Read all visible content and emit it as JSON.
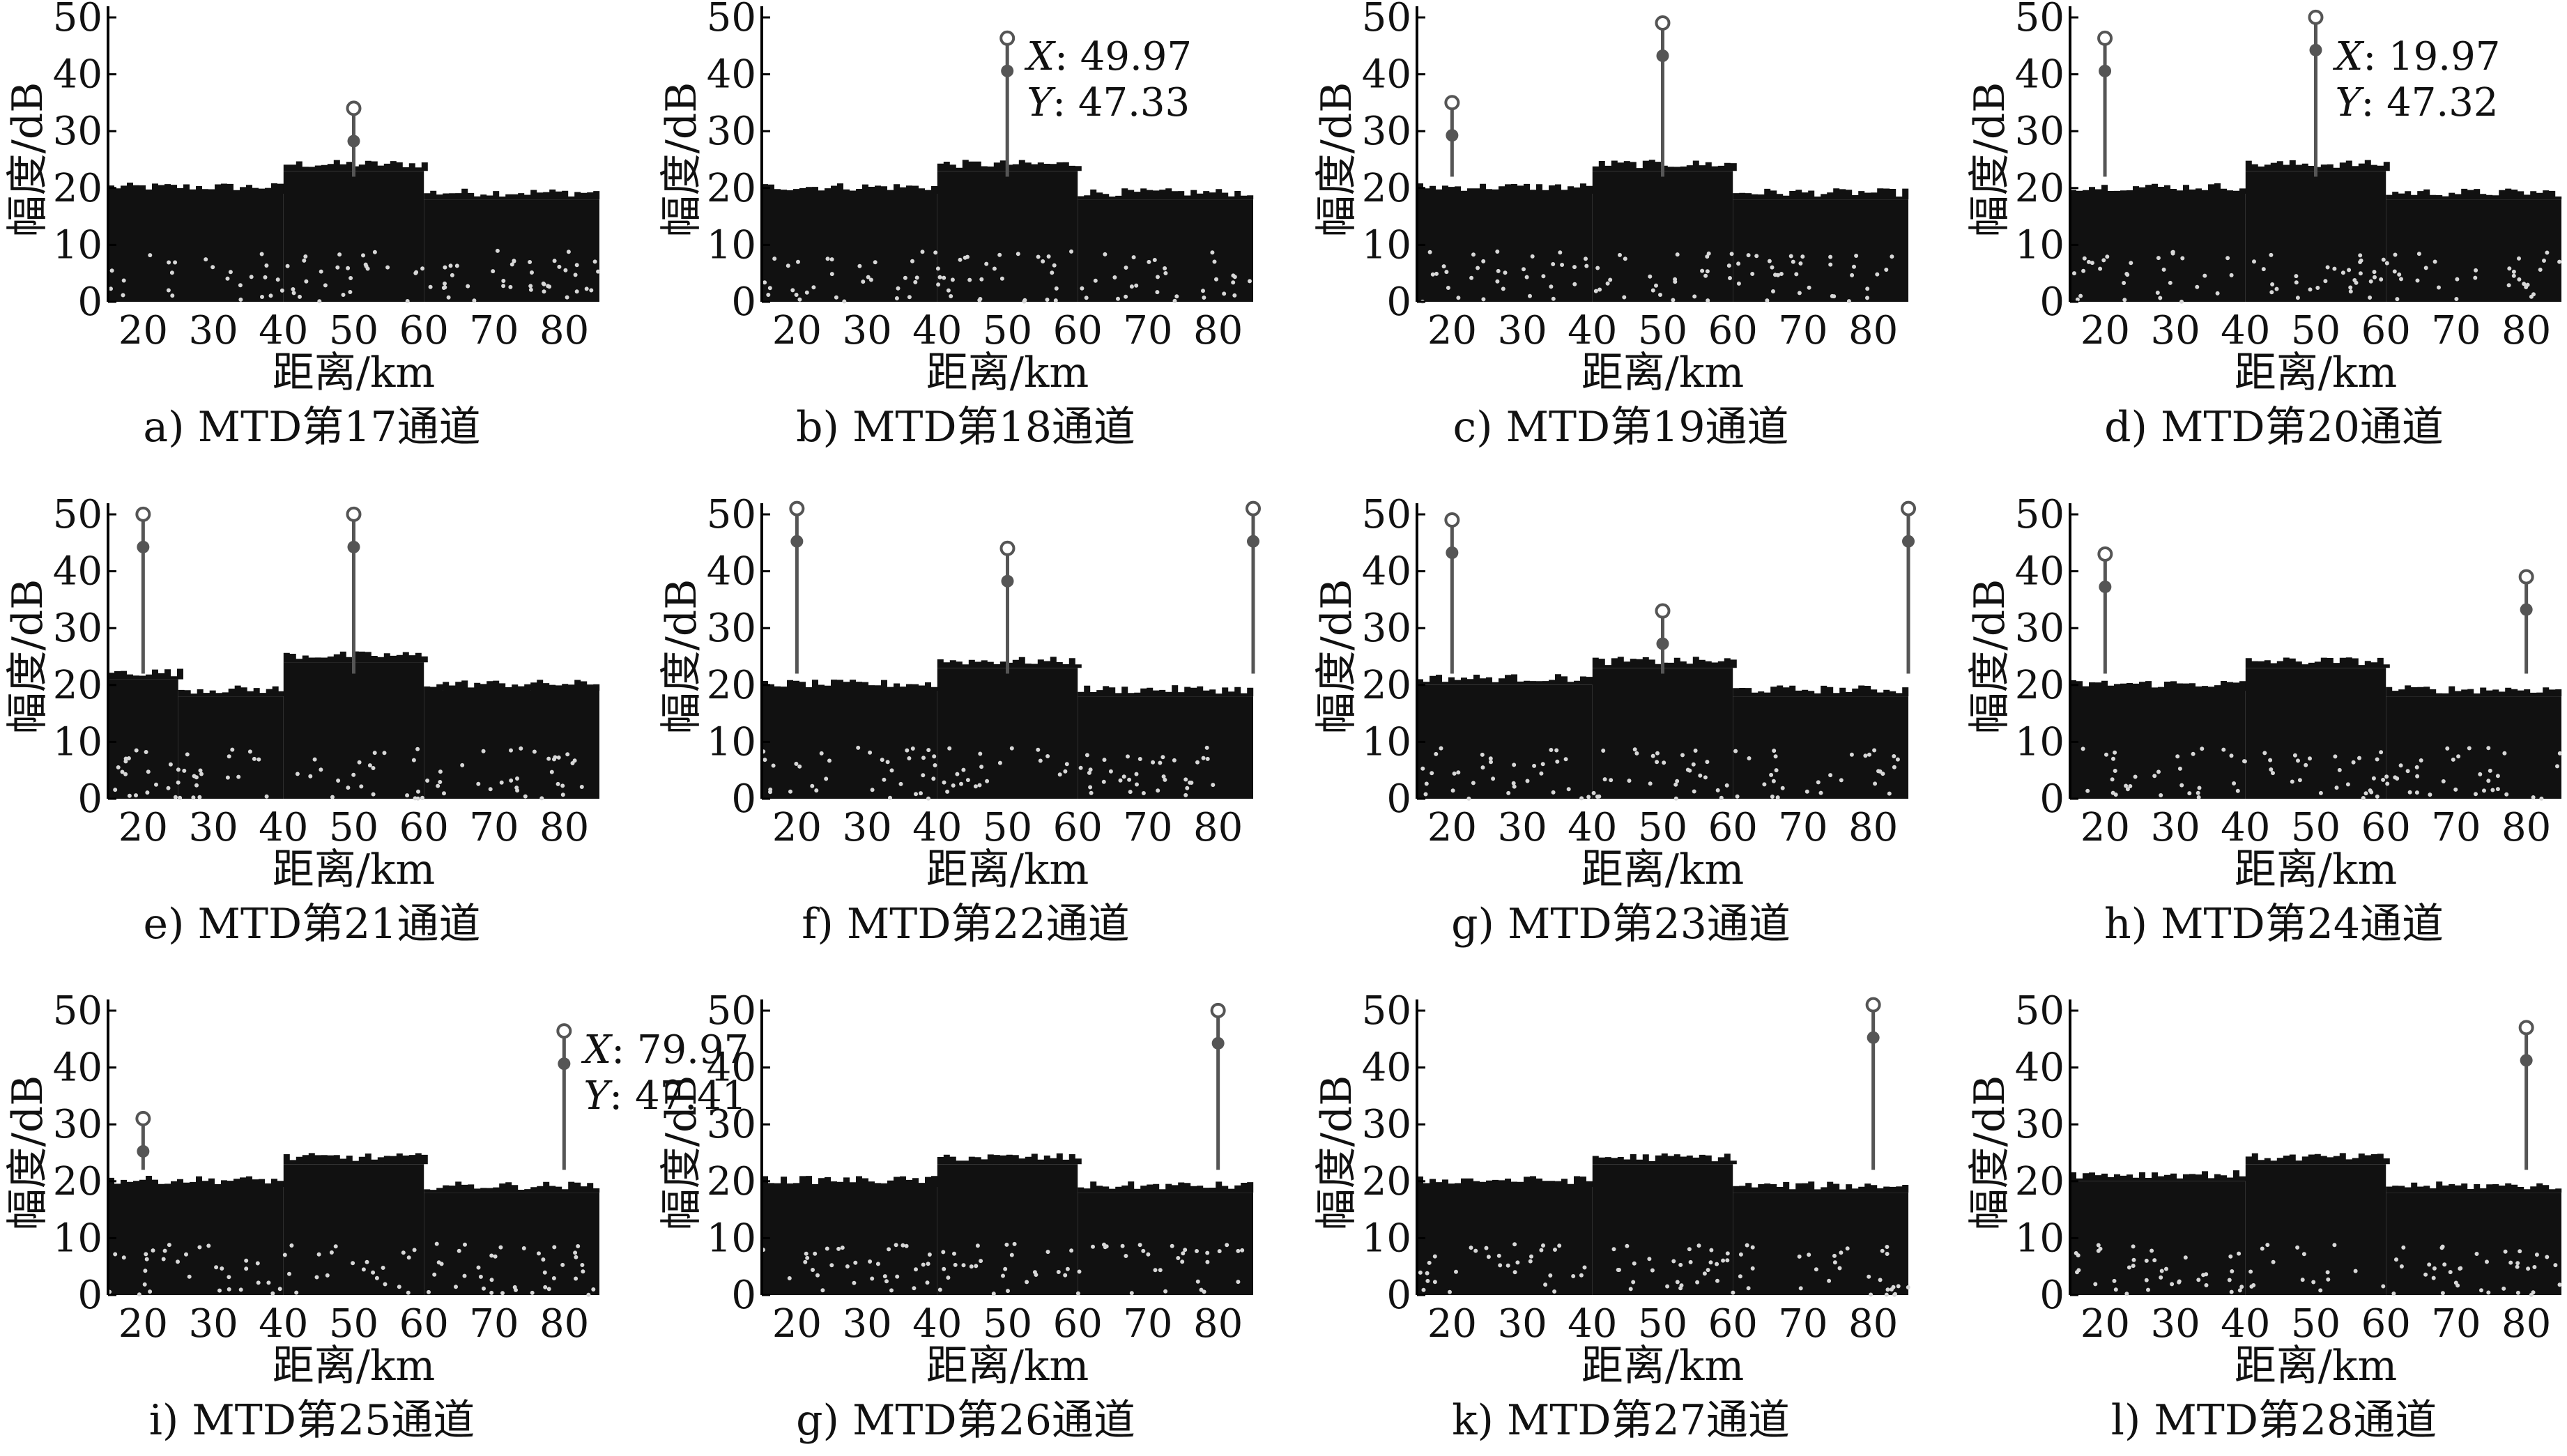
{
  "figure": {
    "colors": {
      "background": "#ffffff",
      "noise": "#111111",
      "target": "#555555",
      "text": "#111111"
    },
    "panels": [
      {
        "caption": "a) MTD第17通道",
        "chart_data": {
          "type": "scatter",
          "xlabel": "距离/km",
          "ylabel": "幅度/dB",
          "xlim": [
            15,
            85
          ],
          "ylim": [
            0,
            50
          ],
          "xticks": [
            20,
            30,
            40,
            50,
            60,
            70,
            80
          ],
          "yticks": [
            0,
            10,
            20,
            30,
            40,
            50
          ],
          "floor_segments": [
            {
              "x": [
                15,
                40
              ],
              "y": 19
            },
            {
              "x": [
                40,
                60
              ],
              "y": 23
            },
            {
              "x": [
                60,
                85
              ],
              "y": 18
            }
          ],
          "targets": [
            {
              "x": 50,
              "y": 35
            }
          ],
          "datatip": null
        }
      },
      {
        "caption": "b) MTD第18通道",
        "chart_data": {
          "type": "scatter",
          "xlabel": "距离/km",
          "ylabel": "幅度/dB",
          "xlim": [
            15,
            85
          ],
          "ylim": [
            0,
            50
          ],
          "xticks": [
            20,
            30,
            40,
            50,
            60,
            70,
            80
          ],
          "yticks": [
            0,
            10,
            20,
            30,
            40,
            50
          ],
          "floor_segments": [
            {
              "x": [
                15,
                40
              ],
              "y": 19
            },
            {
              "x": [
                40,
                60
              ],
              "y": 23
            },
            {
              "x": [
                60,
                85
              ],
              "y": 18
            }
          ],
          "targets": [
            {
              "x": 49.97,
              "y": 47.33
            }
          ],
          "datatip": {
            "x_text": "49.97",
            "y_text": "47.33"
          }
        }
      },
      {
        "caption": "c) MTD第19通道",
        "chart_data": {
          "type": "scatter",
          "xlabel": "距离/km",
          "ylabel": "幅度/dB",
          "xlim": [
            15,
            85
          ],
          "ylim": [
            0,
            50
          ],
          "xticks": [
            20,
            30,
            40,
            50,
            60,
            70,
            80
          ],
          "yticks": [
            0,
            10,
            20,
            30,
            40,
            50
          ],
          "floor_segments": [
            {
              "x": [
                15,
                40
              ],
              "y": 19
            },
            {
              "x": [
                40,
                60
              ],
              "y": 23
            },
            {
              "x": [
                60,
                85
              ],
              "y": 18
            }
          ],
          "targets": [
            {
              "x": 20,
              "y": 36
            },
            {
              "x": 50,
              "y": 50
            }
          ],
          "datatip": null
        }
      },
      {
        "caption": "d) MTD第20通道",
        "chart_data": {
          "type": "scatter",
          "xlabel": "距离/km",
          "ylabel": "幅度/dB",
          "xlim": [
            15,
            85
          ],
          "ylim": [
            0,
            50
          ],
          "xticks": [
            20,
            30,
            40,
            50,
            60,
            70,
            80
          ],
          "yticks": [
            0,
            10,
            20,
            30,
            40,
            50
          ],
          "floor_segments": [
            {
              "x": [
                15,
                40
              ],
              "y": 19
            },
            {
              "x": [
                40,
                60
              ],
              "y": 23
            },
            {
              "x": [
                60,
                85
              ],
              "y": 18
            }
          ],
          "targets": [
            {
              "x": 19.97,
              "y": 47.32
            },
            {
              "x": 50,
              "y": 51
            }
          ],
          "datatip": {
            "x_text": "19.97",
            "y_text": "47.32"
          }
        }
      },
      {
        "caption": "e) MTD第21通道",
        "chart_data": {
          "type": "scatter",
          "xlabel": "距离/km",
          "ylabel": "幅度/dB",
          "xlim": [
            15,
            85
          ],
          "ylim": [
            0,
            50
          ],
          "xticks": [
            20,
            30,
            40,
            50,
            60,
            70,
            80
          ],
          "yticks": [
            0,
            10,
            20,
            30,
            40,
            50
          ],
          "floor_segments": [
            {
              "x": [
                15,
                25
              ],
              "y": 21
            },
            {
              "x": [
                25,
                40
              ],
              "y": 18
            },
            {
              "x": [
                40,
                60
              ],
              "y": 24
            },
            {
              "x": [
                60,
                85
              ],
              "y": 19
            }
          ],
          "targets": [
            {
              "x": 20,
              "y": 51
            },
            {
              "x": 50,
              "y": 51
            }
          ],
          "datatip": null
        }
      },
      {
        "caption": "f) MTD第22通道",
        "chart_data": {
          "type": "scatter",
          "xlabel": "距离/km",
          "ylabel": "幅度/dB",
          "xlim": [
            15,
            85
          ],
          "ylim": [
            0,
            50
          ],
          "xticks": [
            20,
            30,
            40,
            50,
            60,
            70,
            80
          ],
          "yticks": [
            0,
            10,
            20,
            30,
            40,
            50
          ],
          "floor_segments": [
            {
              "x": [
                15,
                40
              ],
              "y": 19
            },
            {
              "x": [
                40,
                60
              ],
              "y": 23
            },
            {
              "x": [
                60,
                85
              ],
              "y": 18
            }
          ],
          "targets": [
            {
              "x": 20,
              "y": 52
            },
            {
              "x": 50,
              "y": 45
            },
            {
              "x": 85,
              "y": 52
            }
          ],
          "datatip": null
        }
      },
      {
        "caption": "g) MTD第23通道",
        "chart_data": {
          "type": "scatter",
          "xlabel": "距离/km",
          "ylabel": "幅度/dB",
          "xlim": [
            15,
            85
          ],
          "ylim": [
            0,
            50
          ],
          "xticks": [
            20,
            30,
            40,
            50,
            60,
            70,
            80
          ],
          "yticks": [
            0,
            10,
            20,
            30,
            40,
            50
          ],
          "floor_segments": [
            {
              "x": [
                15,
                40
              ],
              "y": 20
            },
            {
              "x": [
                40,
                60
              ],
              "y": 23
            },
            {
              "x": [
                60,
                85
              ],
              "y": 18
            }
          ],
          "targets": [
            {
              "x": 20,
              "y": 50
            },
            {
              "x": 50,
              "y": 34
            },
            {
              "x": 85,
              "y": 52
            }
          ],
          "datatip": null
        }
      },
      {
        "caption": "h) MTD第24通道",
        "chart_data": {
          "type": "scatter",
          "xlabel": "距离/km",
          "ylabel": "幅度/dB",
          "xlim": [
            15,
            85
          ],
          "ylim": [
            0,
            50
          ],
          "xticks": [
            20,
            30,
            40,
            50,
            60,
            70,
            80
          ],
          "yticks": [
            0,
            10,
            20,
            30,
            40,
            50
          ],
          "floor_segments": [
            {
              "x": [
                15,
                40
              ],
              "y": 19
            },
            {
              "x": [
                40,
                60
              ],
              "y": 23
            },
            {
              "x": [
                60,
                85
              ],
              "y": 18
            }
          ],
          "targets": [
            {
              "x": 20,
              "y": 44
            },
            {
              "x": 80,
              "y": 40
            }
          ],
          "datatip": null
        }
      },
      {
        "caption": "i) MTD第25通道",
        "chart_data": {
          "type": "scatter",
          "xlabel": "距离/km",
          "ylabel": "幅度/dB",
          "xlim": [
            15,
            85
          ],
          "ylim": [
            0,
            50
          ],
          "xticks": [
            20,
            30,
            40,
            50,
            60,
            70,
            80
          ],
          "yticks": [
            0,
            10,
            20,
            30,
            40,
            50
          ],
          "floor_segments": [
            {
              "x": [
                15,
                40
              ],
              "y": 19
            },
            {
              "x": [
                40,
                60
              ],
              "y": 23
            },
            {
              "x": [
                60,
                85
              ],
              "y": 18
            }
          ],
          "targets": [
            {
              "x": 20,
              "y": 32
            },
            {
              "x": 79.97,
              "y": 47.41
            }
          ],
          "datatip": {
            "x_text": "79.97",
            "y_text": "47.41"
          }
        }
      },
      {
        "caption": "g) MTD第26通道",
        "chart_data": {
          "type": "scatter",
          "xlabel": "距离/km",
          "ylabel": "幅度/dB",
          "xlim": [
            15,
            85
          ],
          "ylim": [
            0,
            50
          ],
          "xticks": [
            20,
            30,
            40,
            50,
            60,
            70,
            80
          ],
          "yticks": [
            0,
            10,
            20,
            30,
            40,
            50
          ],
          "floor_segments": [
            {
              "x": [
                15,
                40
              ],
              "y": 19
            },
            {
              "x": [
                40,
                60
              ],
              "y": 23
            },
            {
              "x": [
                60,
                85
              ],
              "y": 18
            }
          ],
          "targets": [
            {
              "x": 80,
              "y": 51
            }
          ],
          "datatip": null
        }
      },
      {
        "caption": "k) MTD第27通道",
        "chart_data": {
          "type": "scatter",
          "xlabel": "距离/km",
          "ylabel": "幅度/dB",
          "xlim": [
            15,
            85
          ],
          "ylim": [
            0,
            50
          ],
          "xticks": [
            20,
            30,
            40,
            50,
            60,
            70,
            80
          ],
          "yticks": [
            0,
            10,
            20,
            30,
            40,
            50
          ],
          "floor_segments": [
            {
              "x": [
                15,
                40
              ],
              "y": 19
            },
            {
              "x": [
                40,
                60
              ],
              "y": 23
            },
            {
              "x": [
                60,
                85
              ],
              "y": 18
            }
          ],
          "targets": [
            {
              "x": 80,
              "y": 52
            }
          ],
          "datatip": null
        }
      },
      {
        "caption": "l) MTD第28通道",
        "chart_data": {
          "type": "scatter",
          "xlabel": "距离/km",
          "ylabel": "幅度/dB",
          "xlim": [
            15,
            85
          ],
          "ylim": [
            0,
            50
          ],
          "xticks": [
            20,
            30,
            40,
            50,
            60,
            70,
            80
          ],
          "yticks": [
            0,
            10,
            20,
            30,
            40,
            50
          ],
          "floor_segments": [
            {
              "x": [
                15,
                40
              ],
              "y": 20
            },
            {
              "x": [
                40,
                60
              ],
              "y": 23
            },
            {
              "x": [
                60,
                85
              ],
              "y": 18
            }
          ],
          "targets": [
            {
              "x": 80,
              "y": 48
            }
          ],
          "datatip": null
        }
      }
    ]
  }
}
